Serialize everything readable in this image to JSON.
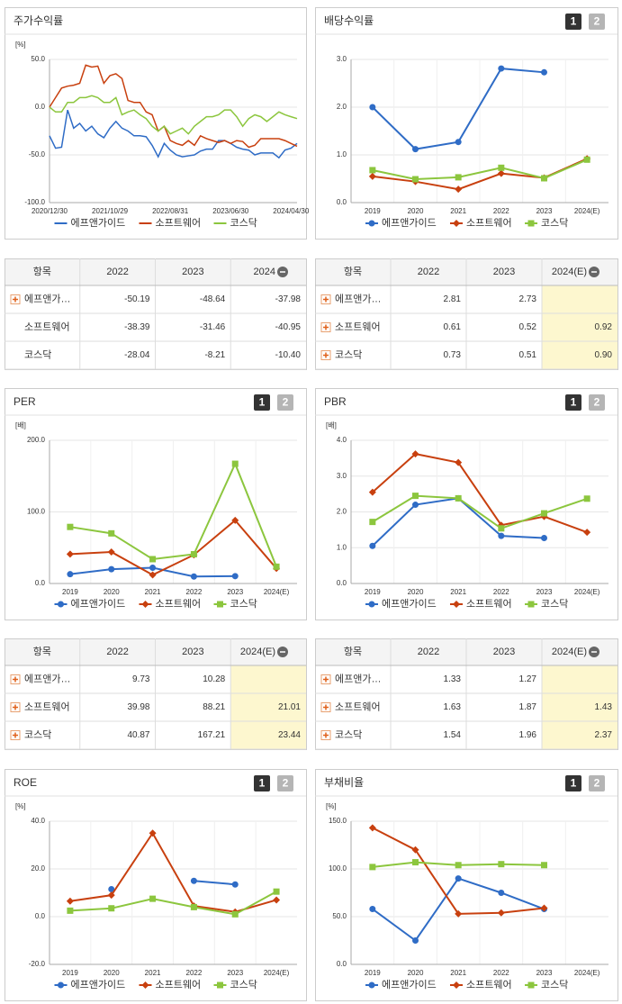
{
  "chart_data": [
    {
      "type": "line",
      "title": "주가수익률",
      "y_label": "[%]",
      "markers": false,
      "grid": true,
      "categories": [
        "2020/12/30",
        null,
        null,
        null,
        null,
        null,
        null,
        null,
        null,
        null,
        "2021/10/29",
        null,
        null,
        null,
        null,
        null,
        null,
        null,
        null,
        null,
        "2022/08/31",
        null,
        null,
        null,
        null,
        null,
        null,
        null,
        null,
        null,
        "2023/06/30",
        null,
        null,
        null,
        null,
        null,
        null,
        null,
        null,
        null,
        "2024/04/30",
        null
      ],
      "series": [
        {
          "name": "에프앤가이드",
          "color": "#2f6cc6",
          "values": [
            -30,
            -43,
            -42,
            -3,
            -22,
            -17,
            -25,
            -20,
            -28,
            -32,
            -22,
            -15,
            -22,
            -25,
            -30,
            -30,
            -31,
            -40,
            -52,
            -38,
            -45,
            -50,
            -52,
            -51,
            -50,
            -46,
            -44,
            -44,
            -35,
            -35,
            -38,
            -42,
            -44,
            -45,
            -50,
            -48,
            -48,
            -48,
            -53,
            -45,
            -43,
            -38
          ]
        },
        {
          "name": "소프트웨어",
          "color": "#c8400f",
          "values": [
            0,
            10,
            20,
            22,
            23,
            25,
            44,
            42,
            43,
            25,
            33,
            35,
            30,
            7,
            5,
            5,
            -5,
            -8,
            -25,
            -20,
            -35,
            -38,
            -40,
            -35,
            -40,
            -30,
            -33,
            -35,
            -37,
            -35,
            -38,
            -35,
            -36,
            -42,
            -40,
            -33,
            -33,
            -33,
            -33,
            -35,
            -38,
            -41
          ]
        },
        {
          "name": "코스닥",
          "color": "#8cc63e",
          "values": [
            0,
            -5,
            -5,
            5,
            5,
            10,
            10,
            12,
            10,
            5,
            5,
            10,
            -8,
            -5,
            -3,
            -8,
            -12,
            -20,
            -25,
            -20,
            -28,
            -25,
            -22,
            -28,
            -20,
            -15,
            -10,
            -10,
            -8,
            -3,
            -3,
            -10,
            -20,
            -12,
            -8,
            -10,
            -15,
            -10,
            -5,
            -8,
            -10,
            -12
          ]
        }
      ],
      "ylim": [
        -100,
        50
      ],
      "yticks": [
        {
          "value": -100,
          "label": "-100.0"
        },
        {
          "value": -50,
          "label": "-50.0"
        },
        {
          "value": 0,
          "label": "0.0"
        },
        {
          "value": 50,
          "label": "50.0"
        }
      ]
    },
    {
      "type": "line",
      "title": "배당수익률",
      "buttons": [
        "1",
        "2"
      ],
      "y_label": null,
      "markers": true,
      "grid": true,
      "categories": [
        "2019",
        "2020",
        "2021",
        "2022",
        "2023",
        "2024(E)"
      ],
      "series": [
        {
          "name": "에프앤가이드",
          "color": "#2f6cc6",
          "values": [
            2.0,
            1.12,
            1.27,
            2.81,
            2.73,
            null
          ]
        },
        {
          "name": "소프트웨어",
          "color": "#c8400f",
          "values": [
            0.55,
            0.44,
            0.28,
            0.61,
            0.52,
            0.92
          ]
        },
        {
          "name": "코스닥",
          "color": "#8cc63e",
          "values": [
            0.68,
            0.49,
            0.53,
            0.73,
            0.51,
            0.9
          ]
        }
      ],
      "ylim": [
        0,
        3
      ],
      "yticks": [
        {
          "value": 0,
          "label": "0.0"
        },
        {
          "value": 1,
          "label": "1.0"
        },
        {
          "value": 2,
          "label": "2.0"
        },
        {
          "value": 3,
          "label": "3.0"
        }
      ]
    },
    {
      "type": "line",
      "title": "PER",
      "buttons": [
        "1",
        "2"
      ],
      "y_label": "[배]",
      "markers": true,
      "grid": true,
      "categories": [
        "2019",
        "2020",
        "2021",
        "2022",
        "2023",
        "2024(E)"
      ],
      "series": [
        {
          "name": "에프앤가이드",
          "color": "#2f6cc6",
          "values": [
            13,
            20,
            22,
            9.73,
            10.28,
            null
          ]
        },
        {
          "name": "소프트웨어",
          "color": "#c8400f",
          "values": [
            41,
            44,
            12,
            39.98,
            88.21,
            21.01
          ]
        },
        {
          "name": "코스닥",
          "color": "#8cc63e",
          "values": [
            79,
            70,
            34,
            40.87,
            167.21,
            23.44
          ]
        }
      ],
      "ylim": [
        0,
        200
      ],
      "yticks": [
        {
          "value": 0,
          "label": "0.0"
        },
        {
          "value": 100,
          "label": "100.0"
        },
        {
          "value": 200,
          "label": "200.0"
        }
      ]
    },
    {
      "type": "line",
      "title": "PBR",
      "buttons": [
        "1",
        "2"
      ],
      "y_label": "[배]",
      "markers": true,
      "grid": true,
      "categories": [
        "2019",
        "2020",
        "2021",
        "2022",
        "2023",
        "2024(E)"
      ],
      "series": [
        {
          "name": "에프앤가이드",
          "color": "#2f6cc6",
          "values": [
            1.05,
            2.2,
            2.38,
            1.33,
            1.27,
            null
          ]
        },
        {
          "name": "소프트웨어",
          "color": "#c8400f",
          "values": [
            2.55,
            3.62,
            3.38,
            1.63,
            1.87,
            1.43
          ]
        },
        {
          "name": "코스닥",
          "color": "#8cc63e",
          "values": [
            1.72,
            2.45,
            2.38,
            1.54,
            1.96,
            2.37
          ]
        }
      ],
      "ylim": [
        0,
        4
      ],
      "yticks": [
        {
          "value": 0,
          "label": "0.0"
        },
        {
          "value": 1,
          "label": "1.0"
        },
        {
          "value": 2,
          "label": "2.0"
        },
        {
          "value": 3,
          "label": "3.0"
        },
        {
          "value": 4,
          "label": "4.0"
        }
      ]
    },
    {
      "type": "line",
      "title": "ROE",
      "buttons": [
        "1",
        "2"
      ],
      "y_label": "[%]",
      "markers": true,
      "grid": true,
      "categories": [
        "2019",
        "2020",
        "2021",
        "2022",
        "2023",
        "2024(E)"
      ],
      "series": [
        {
          "name": "에프앤가이드",
          "color": "#2f6cc6",
          "values": [
            null,
            11.5,
            null,
            15,
            13.5,
            null
          ]
        },
        {
          "name": "소프트웨어",
          "color": "#c8400f",
          "values": [
            6.5,
            9,
            35,
            4.5,
            2,
            7
          ]
        },
        {
          "name": "코스닥",
          "color": "#8cc63e",
          "values": [
            2.5,
            3.5,
            7.5,
            4,
            1,
            10.5
          ]
        }
      ],
      "ylim": [
        -20,
        40
      ],
      "yticks": [
        {
          "value": -20,
          "label": "-20.0"
        },
        {
          "value": 0,
          "label": "0.0"
        },
        {
          "value": 20,
          "label": "20.0"
        },
        {
          "value": 40,
          "label": "40.0"
        }
      ]
    },
    {
      "type": "line",
      "title": "부채비율",
      "buttons": [
        "1",
        "2"
      ],
      "y_label": "[%]",
      "markers": true,
      "grid": true,
      "categories": [
        "2019",
        "2020",
        "2021",
        "2022",
        "2023",
        "2024(E)"
      ],
      "series": [
        {
          "name": "에프앤가이드",
          "color": "#2f6cc6",
          "values": [
            58,
            25,
            90,
            75,
            58,
            null
          ]
        },
        {
          "name": "소프트웨어",
          "color": "#c8400f",
          "values": [
            143,
            120,
            53,
            54,
            59,
            null
          ]
        },
        {
          "name": "코스닥",
          "color": "#8cc63e",
          "values": [
            102,
            107,
            104,
            105,
            104,
            null
          ]
        }
      ],
      "ylim": [
        0,
        150
      ],
      "yticks": [
        {
          "value": 0,
          "label": "0.0"
        },
        {
          "value": 50,
          "label": "50.0"
        },
        {
          "value": 100,
          "label": "100.0"
        },
        {
          "value": 150,
          "label": "150.0"
        }
      ]
    }
  ],
  "tables": [
    {
      "header": [
        "항목",
        "2022",
        "2023",
        "2024"
      ],
      "row_icons": [
        true,
        false,
        false
      ],
      "highlight_last_column": false,
      "rows": [
        [
          "에프앤가…",
          "-50.19",
          "-48.64",
          "-37.98"
        ],
        [
          "소프트웨어",
          "-38.39",
          "-31.46",
          "-40.95"
        ],
        [
          "코스닥",
          "-28.04",
          "-8.21",
          "-10.40"
        ]
      ]
    },
    {
      "header": [
        "항목",
        "2022",
        "2023",
        "2024(E)"
      ],
      "row_icons": [
        true,
        true,
        true
      ],
      "highlight_last_column": true,
      "rows": [
        [
          "에프앤가…",
          "2.81",
          "2.73",
          null
        ],
        [
          "소프트웨어",
          "0.61",
          "0.52",
          "0.92"
        ],
        [
          "코스닥",
          "0.73",
          "0.51",
          "0.90"
        ]
      ]
    },
    {
      "header": [
        "항목",
        "2022",
        "2023",
        "2024(E)"
      ],
      "row_icons": [
        true,
        true,
        true
      ],
      "highlight_last_column": true,
      "rows": [
        [
          "에프앤가…",
          "9.73",
          "10.28",
          null
        ],
        [
          "소프트웨어",
          "39.98",
          "88.21",
          "21.01"
        ],
        [
          "코스닥",
          "40.87",
          "167.21",
          "23.44"
        ]
      ]
    },
    {
      "header": [
        "항목",
        "2022",
        "2023",
        "2024(E)"
      ],
      "row_icons": [
        true,
        true,
        true
      ],
      "highlight_last_column": true,
      "rows": [
        [
          "에프앤가…",
          "1.33",
          "1.27",
          null
        ],
        [
          "소프트웨어",
          "1.63",
          "1.87",
          "1.43"
        ],
        [
          "코스닥",
          "1.54",
          "1.96",
          "2.37"
        ]
      ]
    }
  ]
}
